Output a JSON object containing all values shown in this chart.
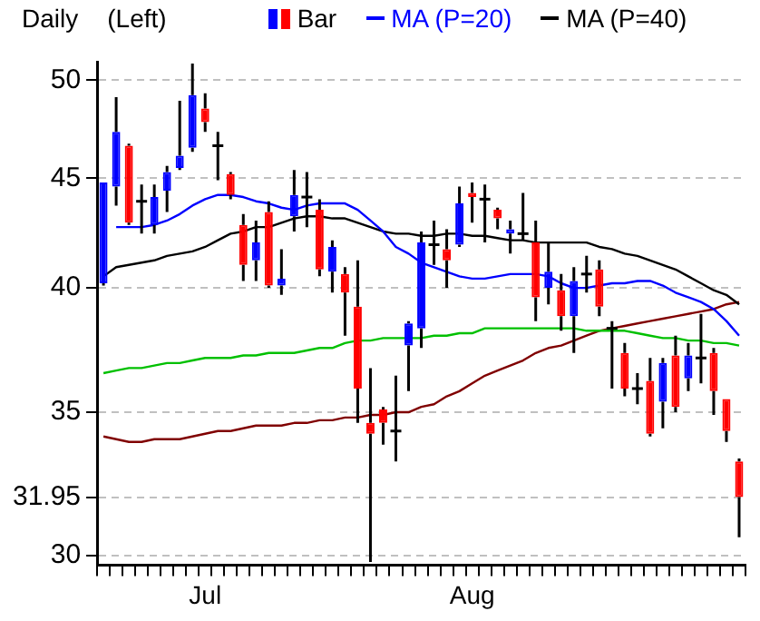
{
  "chart_data": {
    "type": "candlestick",
    "title": "Daily",
    "subtitle": "(Left)",
    "categories": [
      null,
      null,
      null,
      null,
      null,
      null,
      null,
      null,
      "Jul",
      null,
      null,
      null,
      null,
      null,
      null,
      null,
      null,
      null,
      null,
      null,
      null,
      null,
      null,
      null,
      null,
      null,
      null,
      null,
      null,
      "Aug",
      null,
      null,
      null,
      null,
      null,
      null,
      null,
      null,
      null,
      null,
      null,
      null,
      null,
      null,
      null,
      null,
      null,
      null,
      null,
      null,
      null
    ],
    "ylim": [
      29.7,
      51
    ],
    "yticks": [
      30,
      31.95,
      35,
      40,
      45,
      50
    ],
    "log": true,
    "grid": "y",
    "legend": "top",
    "series": [
      {
        "name": "Bar",
        "color": "#000000",
        "colors": [
          "#0000ff",
          "#0000ff",
          "#ff0000",
          "#000000",
          "#0000ff",
          "#0000ff",
          "#0000ff",
          "#0000ff",
          "#ff0000",
          "#000000",
          "#ff0000",
          "#ff0000",
          "#0000ff",
          "#ff0000",
          "#0000ff",
          "#0000ff",
          "#000000",
          "#ff0000",
          "#0000ff",
          "#ff0000",
          "#ff0000",
          "#ff0000",
          "#ff0000",
          "#000000",
          "#0000ff",
          "#0000ff",
          "#000000",
          "#ff0000",
          "#0000ff",
          "#ff0000",
          "#000000",
          "#ff0000",
          "#0000ff",
          "#000000",
          "#ff0000",
          "#0000ff",
          "#ff0000",
          "#0000ff",
          "#000000",
          "#ff0000",
          "#000000",
          "#ff0000",
          "#000000",
          "#ff0000",
          "#0000ff",
          "#ff0000",
          "#0000ff",
          "#000000",
          "#ff0000",
          "#ff0000",
          "#ff0000"
        ],
        "ohlc": [
          [
            40.2,
            44.8,
            40.1,
            44.8
          ],
          [
            44.6,
            49.1,
            43.7,
            47.3
          ],
          [
            46.6,
            46.7,
            42.8,
            42.9
          ],
          [
            43.9,
            44.7,
            42.4,
            43.9
          ],
          [
            42.8,
            44.7,
            42.4,
            44.1
          ],
          [
            44.4,
            45.6,
            43.4,
            45.3
          ],
          [
            45.5,
            48.9,
            45.4,
            46.1
          ],
          [
            46.5,
            50.9,
            46.3,
            49.2
          ],
          [
            48.5,
            49.3,
            47.3,
            47.8
          ],
          [
            46.6,
            47.3,
            44.9,
            46.6
          ],
          [
            45.2,
            45.3,
            44.0,
            44.2
          ],
          [
            42.8,
            43.3,
            40.3,
            41.0
          ],
          [
            41.2,
            43.0,
            40.3,
            42.0
          ],
          [
            43.4,
            43.9,
            40.0,
            40.1
          ],
          [
            40.1,
            41.7,
            39.7,
            40.4
          ],
          [
            43.2,
            45.4,
            42.5,
            44.2
          ],
          [
            44.1,
            45.3,
            42.7,
            44.1
          ],
          [
            43.5,
            44.0,
            40.5,
            40.8
          ],
          [
            40.7,
            42.1,
            39.8,
            41.8
          ],
          [
            40.6,
            40.9,
            38.0,
            39.8
          ],
          [
            39.2,
            41.2,
            34.6,
            35.9
          ],
          [
            34.6,
            36.7,
            29.8,
            34.2
          ],
          [
            35.1,
            35.2,
            33.8,
            34.6
          ],
          [
            34.3,
            36.4,
            33.2,
            34.3
          ],
          [
            37.6,
            38.6,
            35.8,
            38.5
          ],
          [
            38.3,
            42.5,
            37.5,
            42.0
          ],
          [
            41.9,
            43.0,
            41.0,
            41.9
          ],
          [
            41.7,
            42.6,
            40.0,
            41.2
          ],
          [
            41.9,
            44.6,
            41.8,
            43.8
          ],
          [
            44.3,
            44.8,
            42.9,
            44.1
          ],
          [
            44.0,
            44.7,
            42.0,
            44.0
          ],
          [
            43.5,
            43.6,
            42.6,
            43.1
          ],
          [
            42.4,
            43.0,
            41.5,
            42.6
          ],
          [
            42.4,
            44.3,
            42.1,
            42.4
          ],
          [
            42.0,
            43.0,
            38.6,
            39.6
          ],
          [
            40.0,
            42.0,
            39.3,
            40.7
          ],
          [
            39.9,
            40.6,
            38.2,
            38.8
          ],
          [
            38.8,
            40.9,
            37.3,
            40.3
          ],
          [
            40.6,
            41.4,
            39.8,
            40.6
          ],
          [
            40.8,
            41.2,
            38.8,
            39.2
          ],
          [
            38.3,
            38.6,
            35.9,
            38.3
          ],
          [
            37.3,
            37.7,
            35.6,
            35.9
          ],
          [
            35.9,
            36.5,
            35.3,
            35.9
          ],
          [
            36.2,
            37.1,
            34.1,
            34.2
          ],
          [
            35.4,
            37.1,
            34.4,
            36.9
          ],
          [
            37.2,
            38.0,
            35.0,
            35.2
          ],
          [
            36.3,
            37.7,
            35.8,
            37.2
          ],
          [
            37.1,
            38.9,
            36.1,
            37.1
          ],
          [
            37.3,
            37.5,
            34.9,
            35.8
          ],
          [
            35.5,
            35.5,
            33.9,
            34.3
          ],
          [
            33.2,
            33.3,
            30.6,
            31.95
          ]
        ]
      },
      {
        "type": "line",
        "name": "MA (P=20)",
        "color": "#0000ff",
        "values": [
          null,
          42.7,
          42.7,
          42.7,
          42.8,
          43.0,
          43.3,
          43.7,
          44.0,
          44.2,
          44.2,
          44.1,
          43.9,
          43.8,
          43.6,
          43.5,
          43.7,
          43.8,
          43.8,
          43.8,
          43.5,
          43.0,
          42.5,
          41.8,
          41.5,
          41.1,
          40.9,
          40.7,
          40.5,
          40.4,
          40.4,
          40.5,
          40.6,
          40.6,
          40.6,
          40.5,
          40.2,
          40.0,
          40.0,
          40.1,
          40.2,
          40.2,
          40.3,
          40.3,
          40.1,
          39.8,
          39.6,
          39.4,
          39.1,
          38.6,
          38.0
        ]
      },
      {
        "type": "line",
        "name": "MA (P=40)",
        "color": "#000000",
        "values": [
          40.5,
          40.9,
          41.0,
          41.1,
          41.2,
          41.4,
          41.5,
          41.6,
          41.8,
          42.1,
          42.4,
          42.5,
          42.7,
          42.7,
          42.9,
          43.1,
          43.2,
          43.2,
          43.1,
          43.1,
          42.9,
          42.7,
          42.5,
          42.4,
          42.4,
          42.3,
          42.3,
          42.4,
          42.4,
          42.3,
          42.3,
          42.2,
          42.1,
          42.1,
          42.0,
          42.0,
          42.0,
          42.0,
          42.0,
          41.8,
          41.7,
          41.5,
          41.4,
          41.2,
          41.0,
          40.8,
          40.5,
          40.2,
          39.9,
          39.7,
          39.3
        ]
      },
      {
        "type": "line",
        "color": "#00c000",
        "values": [
          36.5,
          36.6,
          36.7,
          36.7,
          36.8,
          36.9,
          36.9,
          37.0,
          37.1,
          37.1,
          37.1,
          37.2,
          37.2,
          37.3,
          37.3,
          37.3,
          37.4,
          37.5,
          37.5,
          37.7,
          37.8,
          37.8,
          37.9,
          37.9,
          37.9,
          37.9,
          38.0,
          38.0,
          38.1,
          38.1,
          38.3,
          38.3,
          38.3,
          38.3,
          38.3,
          38.3,
          38.3,
          38.3,
          38.2,
          38.2,
          38.2,
          38.2,
          38.1,
          38.0,
          37.9,
          37.9,
          37.8,
          37.8,
          37.7,
          37.7,
          37.6
        ]
      },
      {
        "type": "line",
        "color": "#800000",
        "values": [
          34.1,
          34.0,
          33.9,
          33.9,
          34.0,
          34.0,
          34.0,
          34.1,
          34.2,
          34.3,
          34.3,
          34.4,
          34.5,
          34.5,
          34.5,
          34.6,
          34.6,
          34.7,
          34.7,
          34.8,
          34.8,
          34.9,
          34.9,
          35.0,
          35.0,
          35.2,
          35.3,
          35.6,
          35.8,
          36.1,
          36.4,
          36.6,
          36.8,
          37.0,
          37.3,
          37.5,
          37.6,
          37.8,
          38.0,
          38.2,
          38.3,
          38.4,
          38.5,
          38.6,
          38.7,
          38.8,
          38.9,
          39.0,
          39.1,
          39.3,
          39.4
        ]
      }
    ]
  }
}
